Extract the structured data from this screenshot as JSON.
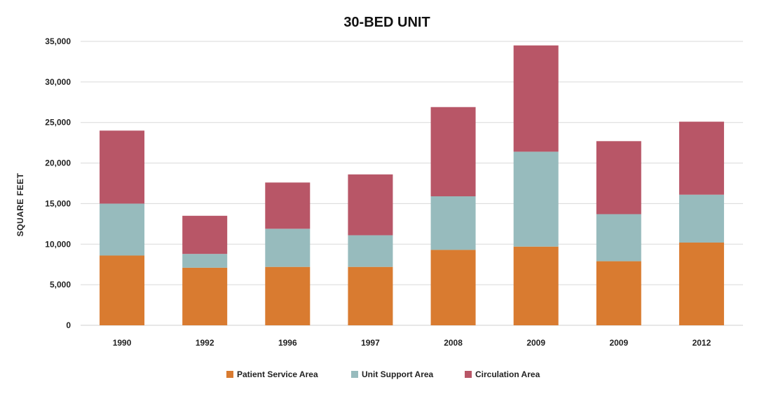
{
  "chart_data": {
    "type": "bar",
    "stacked": true,
    "title": "30-BED UNIT",
    "xlabel": "",
    "ylabel": "SQUARE FEET",
    "ylim": [
      0,
      35000
    ],
    "yticks": [
      0,
      5000,
      10000,
      15000,
      20000,
      25000,
      30000,
      35000
    ],
    "ytick_labels": [
      "0",
      "5,000",
      "10,000",
      "15,000",
      "20,000",
      "25,000",
      "30,000",
      "35,000"
    ],
    "grid": true,
    "legend_position": "bottom",
    "categories": [
      "1990",
      "1992",
      "1996",
      "1997",
      "2008",
      "2009",
      "2009",
      "2012"
    ],
    "series": [
      {
        "name": "Patient Service Area",
        "color": "#d97b30",
        "values": [
          8600,
          7100,
          7200,
          7200,
          9300,
          9700,
          7900,
          10200
        ]
      },
      {
        "name": "Unit Support Area",
        "color": "#97bbbd",
        "values": [
          6400,
          1700,
          4700,
          3900,
          6600,
          11700,
          5800,
          5900
        ]
      },
      {
        "name": "Circulation Area",
        "color": "#b85667",
        "values": [
          9000,
          4700,
          5700,
          7500,
          11000,
          13100,
          9000,
          9000
        ]
      }
    ]
  }
}
